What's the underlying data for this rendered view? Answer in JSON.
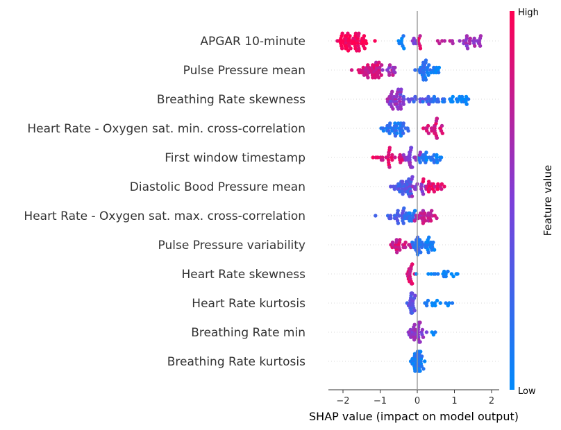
{
  "chart_data": {
    "type": "scatter",
    "subtype": "shap-beeswarm",
    "title": "",
    "xlabel": "SHAP value (impact on model output)",
    "xlim": [
      -2.35,
      2.2
    ],
    "xticks": [
      -2,
      -1,
      0,
      1,
      2
    ],
    "xtick_labels": [
      "−2",
      "−1",
      "0",
      "1",
      "2"
    ],
    "colorbar": {
      "label": "Feature value",
      "high_label": "High",
      "low_label": "Low",
      "low_color": "#008afb",
      "mid_color": "#7d3fd9",
      "high_color": "#ff0052"
    },
    "features": [
      {
        "name": "APGAR 10-minute",
        "groups": [
          {
            "c": -1.75,
            "s": 0.22,
            "n": 60,
            "v": 0.97
          },
          {
            "c": -0.42,
            "s": 0.05,
            "n": 8,
            "v": 0.05
          },
          {
            "c": -0.05,
            "s": 0.04,
            "n": 5,
            "v": 0.45
          },
          {
            "c": 0.05,
            "s": 0.04,
            "n": 6,
            "v": 0.85
          },
          {
            "c": 0.85,
            "s": 0.15,
            "n": 7,
            "v": 0.75
          },
          {
            "c": 1.45,
            "s": 0.18,
            "n": 24,
            "v": 0.6
          }
        ]
      },
      {
        "name": "Pulse Pressure mean",
        "groups": [
          {
            "c": -1.2,
            "s": 0.22,
            "n": 45,
            "v": 0.82
          },
          {
            "c": -0.75,
            "s": 0.12,
            "n": 12,
            "v": 0.6
          },
          {
            "c": 0.15,
            "s": 0.12,
            "n": 28,
            "v": 0.15
          },
          {
            "c": 0.5,
            "s": 0.12,
            "n": 10,
            "v": 0.05
          }
        ]
      },
      {
        "name": "Breathing Rate skewness",
        "groups": [
          {
            "c": -0.55,
            "s": 0.12,
            "n": 35,
            "v": 0.6
          },
          {
            "c": -0.1,
            "s": 0.25,
            "n": 16,
            "v": 0.38
          },
          {
            "c": 0.4,
            "s": 0.2,
            "n": 14,
            "v": 0.18
          },
          {
            "c": 1.05,
            "s": 0.22,
            "n": 22,
            "v": 0.03
          }
        ]
      },
      {
        "name": "Heart Rate - Oxygen sat. min. cross-correlation",
        "groups": [
          {
            "c": -0.55,
            "s": 0.17,
            "n": 38,
            "v": 0.15
          },
          {
            "c": 0.5,
            "s": 0.12,
            "n": 28,
            "v": 0.85
          }
        ]
      },
      {
        "name": "First window timestamp",
        "groups": [
          {
            "c": -0.7,
            "s": 0.2,
            "n": 28,
            "v": 0.88
          },
          {
            "c": -0.2,
            "s": 0.12,
            "n": 24,
            "v": 0.55
          },
          {
            "c": 0.35,
            "s": 0.22,
            "n": 26,
            "v": 0.1
          }
        ]
      },
      {
        "name": "Diastolic Bood Pressure mean",
        "groups": [
          {
            "c": -0.4,
            "s": 0.15,
            "n": 34,
            "v": 0.3
          },
          {
            "c": 0.0,
            "s": 0.12,
            "n": 16,
            "v": 0.55
          },
          {
            "c": 0.45,
            "s": 0.15,
            "n": 24,
            "v": 0.88
          }
        ]
      },
      {
        "name": "Heart Rate - Oxygen sat. max. cross-correlation",
        "groups": [
          {
            "c": -0.55,
            "s": 0.2,
            "n": 22,
            "v": 0.3
          },
          {
            "c": -0.2,
            "s": 0.1,
            "n": 14,
            "v": 0.15
          },
          {
            "c": 0.2,
            "s": 0.12,
            "n": 28,
            "v": 0.75
          }
        ]
      },
      {
        "name": "Pulse Pressure variability",
        "groups": [
          {
            "c": -0.5,
            "s": 0.15,
            "n": 24,
            "v": 0.82
          },
          {
            "c": 0.0,
            "s": 0.12,
            "n": 22,
            "v": 0.2
          },
          {
            "c": 0.35,
            "s": 0.1,
            "n": 16,
            "v": 0.05
          }
        ]
      },
      {
        "name": "Heart Rate skewness",
        "groups": [
          {
            "c": -0.2,
            "s": 0.06,
            "n": 18,
            "v": 0.85
          },
          {
            "c": 0.6,
            "s": 0.22,
            "n": 12,
            "v": 0.05
          },
          {
            "c": 1.02,
            "s": 0.07,
            "n": 4,
            "v": 0.02
          }
        ]
      },
      {
        "name": "Heart Rate kurtosis",
        "groups": [
          {
            "c": -0.15,
            "s": 0.06,
            "n": 26,
            "v": 0.35
          },
          {
            "c": 0.45,
            "s": 0.18,
            "n": 12,
            "v": 0.05
          },
          {
            "c": 0.82,
            "s": 0.04,
            "n": 2,
            "v": 0.02
          }
        ]
      },
      {
        "name": "Breathing Rate min",
        "groups": [
          {
            "c": -0.05,
            "s": 0.1,
            "n": 34,
            "v": 0.55
          },
          {
            "c": 0.45,
            "s": 0.04,
            "n": 3,
            "v": 0.05
          }
        ]
      },
      {
        "name": "Breathing Rate kurtosis",
        "groups": [
          {
            "c": 0.0,
            "s": 0.1,
            "n": 40,
            "v": 0.12
          }
        ]
      }
    ]
  }
}
